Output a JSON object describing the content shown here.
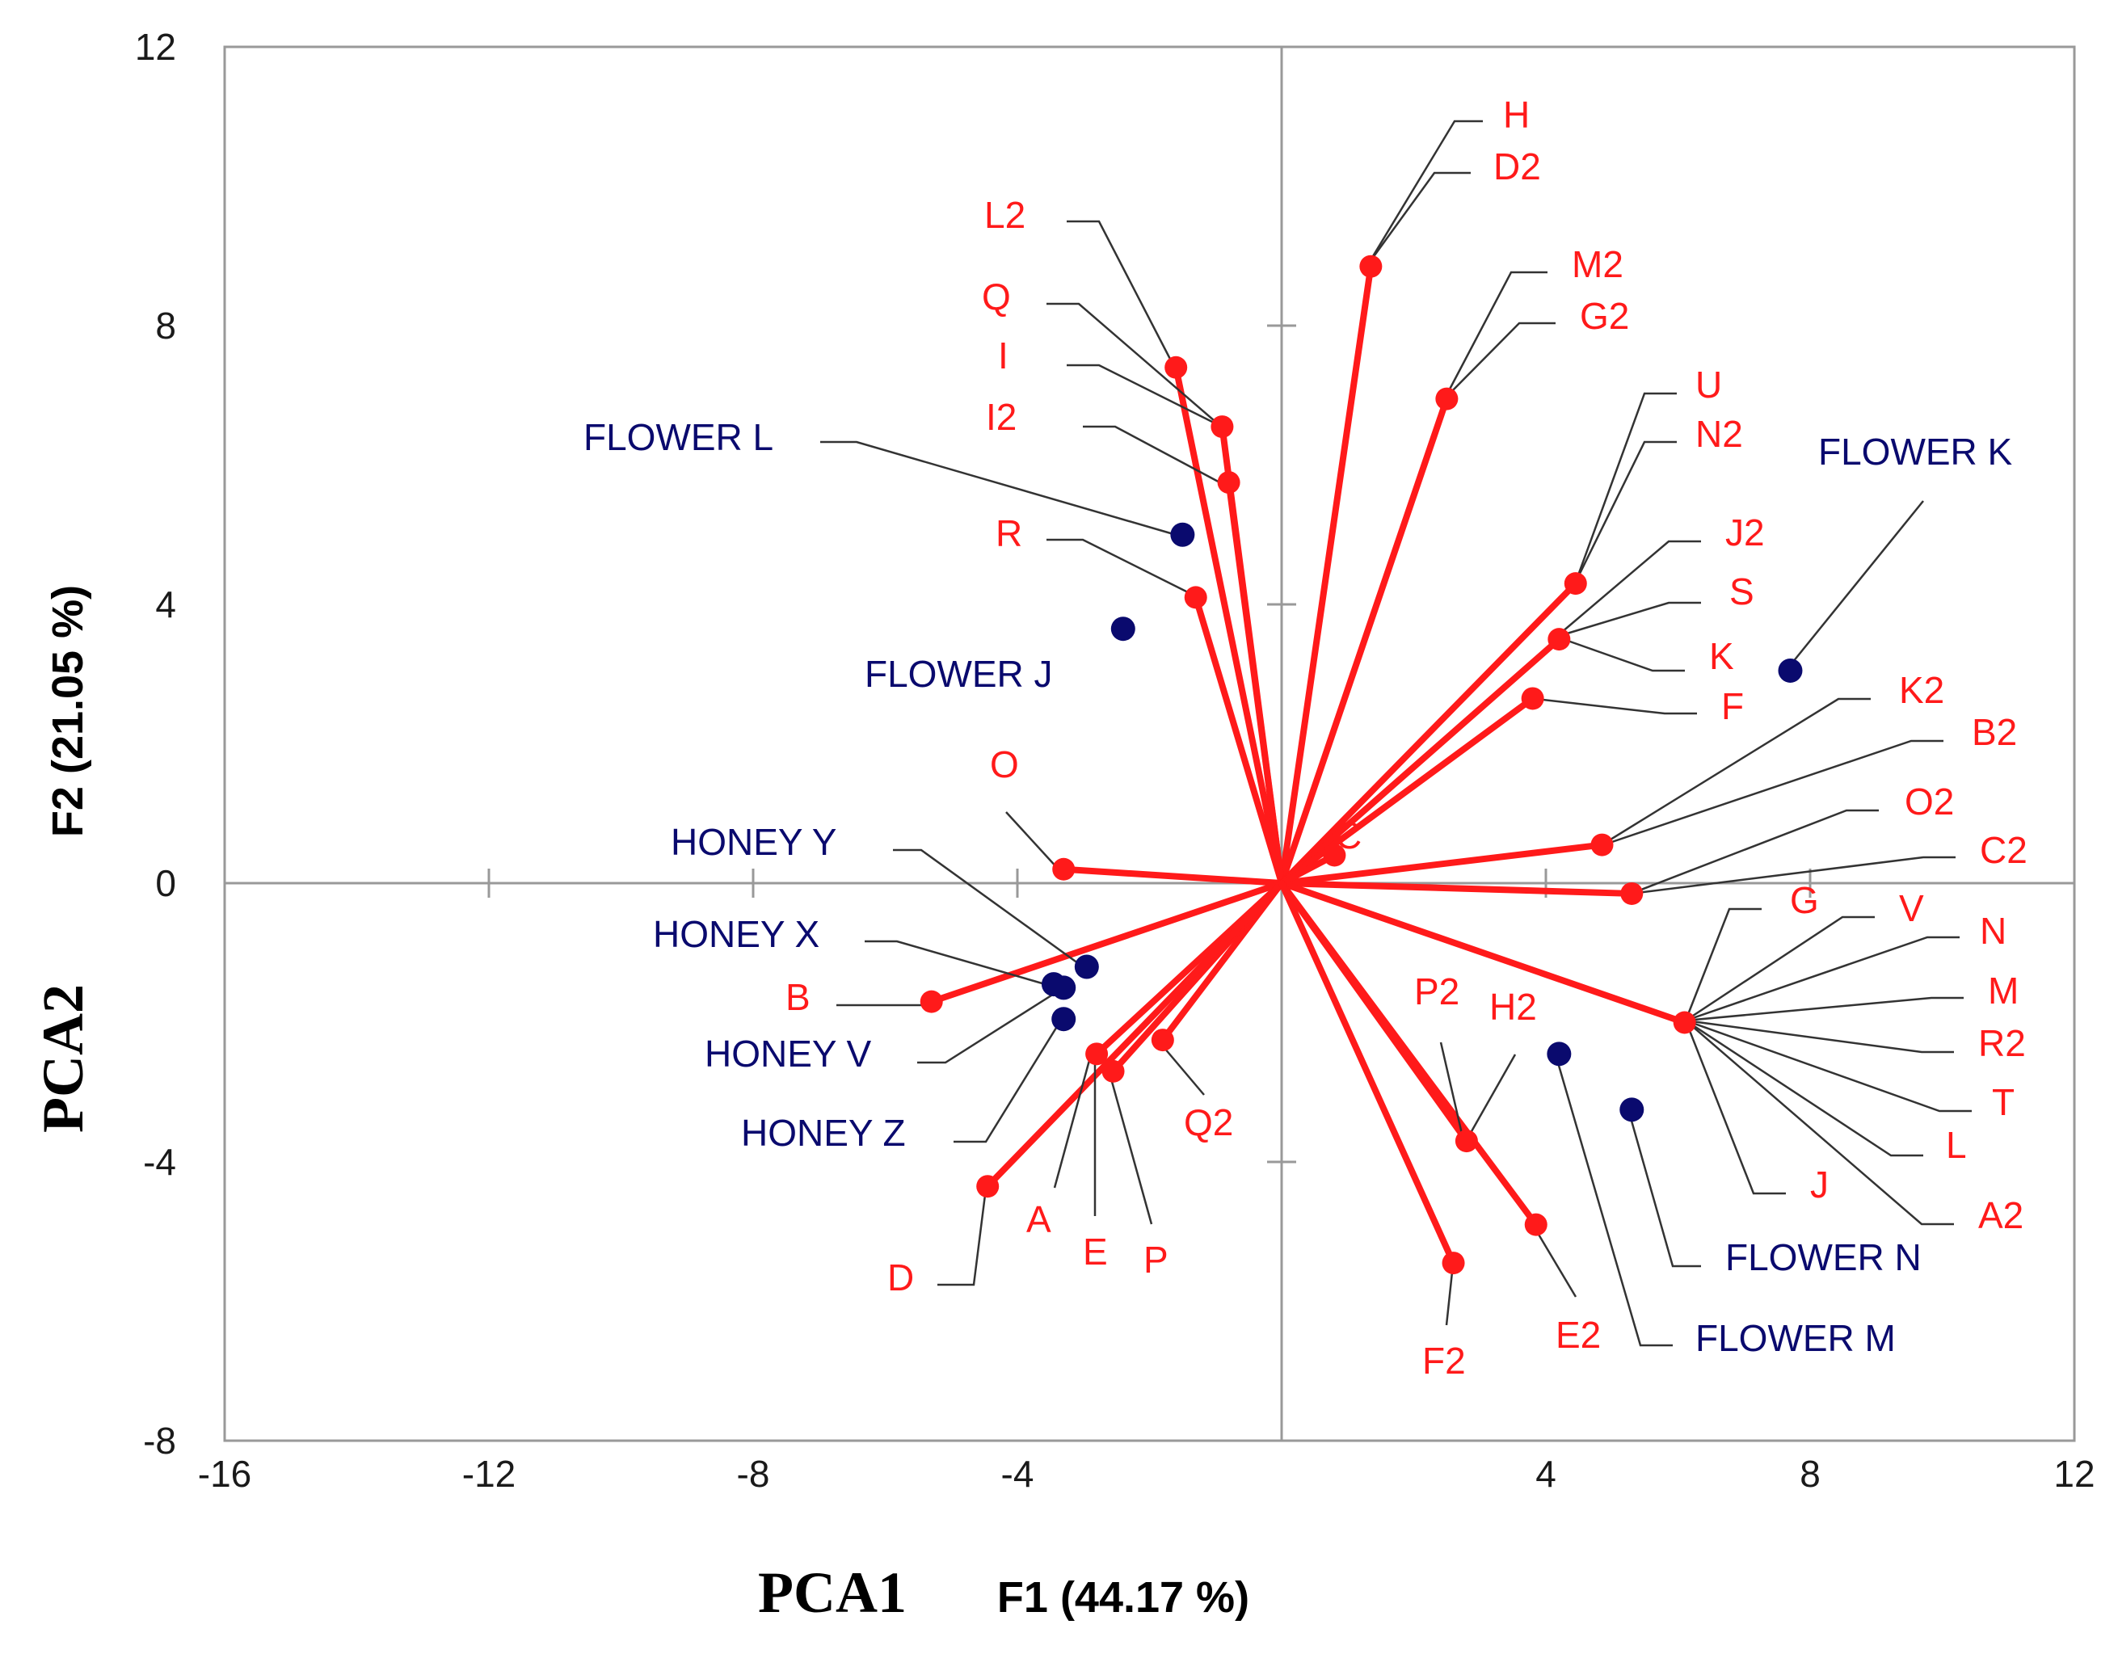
{
  "chart_data": {
    "type": "scatter",
    "title": "",
    "xlabel_main": "PCA1",
    "xlabel_sub": "F1 (44.17 %)",
    "ylabel_main": "PCA2",
    "ylabel_sub": "F2 (21.05 %)",
    "xlim": [
      -16,
      12
    ],
    "ylim": [
      -8,
      12
    ],
    "x_ticks": [
      "-16",
      "-12",
      "-8",
      "-4",
      "4",
      "8",
      "12"
    ],
    "y_ticks": [
      "-8",
      "-4",
      "0",
      "4",
      "8",
      "12"
    ],
    "colors": {
      "variables": "#ff1a1a",
      "observations": "#0a0a6e",
      "leaders": "#333333",
      "frame": "#999999"
    },
    "variables": [
      {
        "name": "H",
        "x": 1.35,
        "y": 8.85
      },
      {
        "name": "D2",
        "x": 1.35,
        "y": 8.85
      },
      {
        "name": "M2",
        "x": 2.5,
        "y": 6.95
      },
      {
        "name": "G2",
        "x": 2.5,
        "y": 6.95
      },
      {
        "name": "L2",
        "x": -1.6,
        "y": 7.4
      },
      {
        "name": "Q",
        "x": -0.9,
        "y": 6.55
      },
      {
        "name": "I",
        "x": -0.9,
        "y": 6.55
      },
      {
        "name": "I2",
        "x": -0.8,
        "y": 5.75
      },
      {
        "name": "R",
        "x": -1.3,
        "y": 4.1
      },
      {
        "name": "U",
        "x": 4.45,
        "y": 4.3
      },
      {
        "name": "N2",
        "x": 4.45,
        "y": 4.3
      },
      {
        "name": "J2",
        "x": 4.2,
        "y": 3.5
      },
      {
        "name": "S",
        "x": 4.2,
        "y": 3.5
      },
      {
        "name": "K",
        "x": 4.2,
        "y": 3.5
      },
      {
        "name": "F",
        "x": 3.8,
        "y": 2.65
      },
      {
        "name": "K2",
        "x": 4.85,
        "y": 0.55
      },
      {
        "name": "B2",
        "x": 4.85,
        "y": 0.55
      },
      {
        "name": "O2",
        "x": 5.3,
        "y": -0.15
      },
      {
        "name": "C2",
        "x": 5.3,
        "y": -0.15
      },
      {
        "name": "C",
        "x": 0.8,
        "y": 0.4
      },
      {
        "name": "G",
        "x": 6.1,
        "y": -2.0
      },
      {
        "name": "V",
        "x": 6.1,
        "y": -2.0
      },
      {
        "name": "N",
        "x": 6.1,
        "y": -2.0
      },
      {
        "name": "M",
        "x": 6.1,
        "y": -2.0
      },
      {
        "name": "R2",
        "x": 6.1,
        "y": -2.0
      },
      {
        "name": "T",
        "x": 6.1,
        "y": -2.0
      },
      {
        "name": "L",
        "x": 6.1,
        "y": -2.0
      },
      {
        "name": "A2",
        "x": 6.1,
        "y": -2.0
      },
      {
        "name": "J",
        "x": 6.1,
        "y": -2.0
      },
      {
        "name": "O",
        "x": -3.3,
        "y": 0.2
      },
      {
        "name": "B",
        "x": -5.3,
        "y": -1.7
      },
      {
        "name": "Q2",
        "x": -1.8,
        "y": -2.25
      },
      {
        "name": "A",
        "x": -2.8,
        "y": -2.45
      },
      {
        "name": "E",
        "x": -2.8,
        "y": -2.45
      },
      {
        "name": "P",
        "x": -2.55,
        "y": -2.7
      },
      {
        "name": "D",
        "x": -4.45,
        "y": -4.35
      },
      {
        "name": "P2",
        "x": 2.8,
        "y": -3.7
      },
      {
        "name": "H2",
        "x": 2.8,
        "y": -3.7
      },
      {
        "name": "E2",
        "x": 3.85,
        "y": -4.9
      },
      {
        "name": "F2",
        "x": 2.6,
        "y": -5.45
      }
    ],
    "observations": [
      {
        "name": "FLOWER L",
        "x": -1.5,
        "y": 5.0
      },
      {
        "name": "FLOWER J",
        "x": -2.4,
        "y": 3.65
      },
      {
        "name": "FLOWER K",
        "x": 7.7,
        "y": 3.05
      },
      {
        "name": "HONEY Y",
        "x": -2.95,
        "y": -1.2
      },
      {
        "name": "HONEY X",
        "x": -3.45,
        "y": -1.45
      },
      {
        "name": "HONEY V",
        "x": -3.3,
        "y": -1.5
      },
      {
        "name": "HONEY Z",
        "x": -3.3,
        "y": -1.95
      },
      {
        "name": "FLOWER M",
        "x": 4.2,
        "y": -2.45
      },
      {
        "name": "FLOWER N",
        "x": 5.3,
        "y": -3.25
      }
    ]
  }
}
